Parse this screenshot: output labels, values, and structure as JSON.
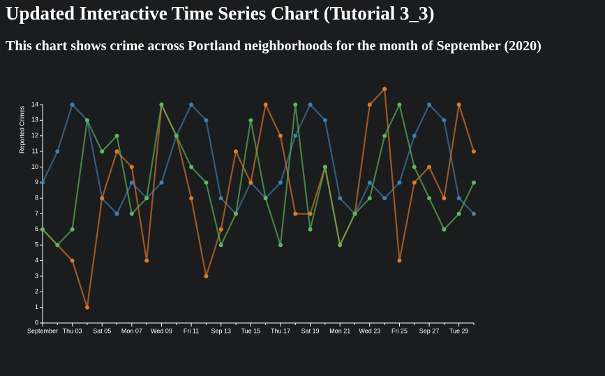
{
  "chart_data": {
    "type": "line",
    "title": "Updated Interactive Time Series Chart (Tutorial 3_3)",
    "subtitle": "This chart shows crime across Portland neighborhoods for the month of September (2020)",
    "y_label": "Reported Crimes",
    "categories": [
      "September",
      null,
      "Thu 03",
      null,
      "Sat 05",
      null,
      "Mon 07",
      null,
      "Wed 09",
      null,
      "Fri 11",
      null,
      "Sep 13",
      null,
      "Tue 15",
      null,
      "Thu 17",
      null,
      "Sat 19",
      null,
      "Mon 21",
      null,
      "Wed 23",
      null,
      "Fri 25",
      null,
      "Sep 27",
      null,
      "Tue 29",
      null
    ],
    "ylim": [
      0,
      14
    ],
    "yticks": [
      0,
      1,
      2,
      3,
      4,
      5,
      6,
      7,
      8,
      9,
      10,
      11,
      12,
      13,
      14
    ],
    "series": [
      {
        "color": "#3f7fb0",
        "values": [
          9,
          11,
          14,
          13,
          8,
          7,
          9,
          8,
          9,
          12,
          14,
          13,
          8,
          7,
          9,
          8,
          9,
          12,
          14,
          13,
          8,
          7,
          9,
          8,
          9,
          12,
          14,
          13,
          8,
          7
        ]
      },
      {
        "color": "#e07a26",
        "values": [
          6,
          5,
          4,
          1,
          8,
          11,
          10,
          4,
          14,
          12,
          8,
          3,
          6,
          11,
          9,
          14,
          12,
          7,
          7,
          10,
          5,
          7,
          14,
          15,
          4,
          9,
          10,
          8,
          14,
          11
        ]
      },
      {
        "color": "#5cb85c",
        "values": [
          6,
          5,
          6,
          13,
          11,
          12,
          7,
          8,
          14,
          12,
          10,
          9,
          5,
          7,
          13,
          8,
          5,
          14,
          6,
          10,
          5,
          7,
          8,
          12,
          14,
          10,
          8,
          6,
          7,
          9
        ]
      }
    ]
  }
}
